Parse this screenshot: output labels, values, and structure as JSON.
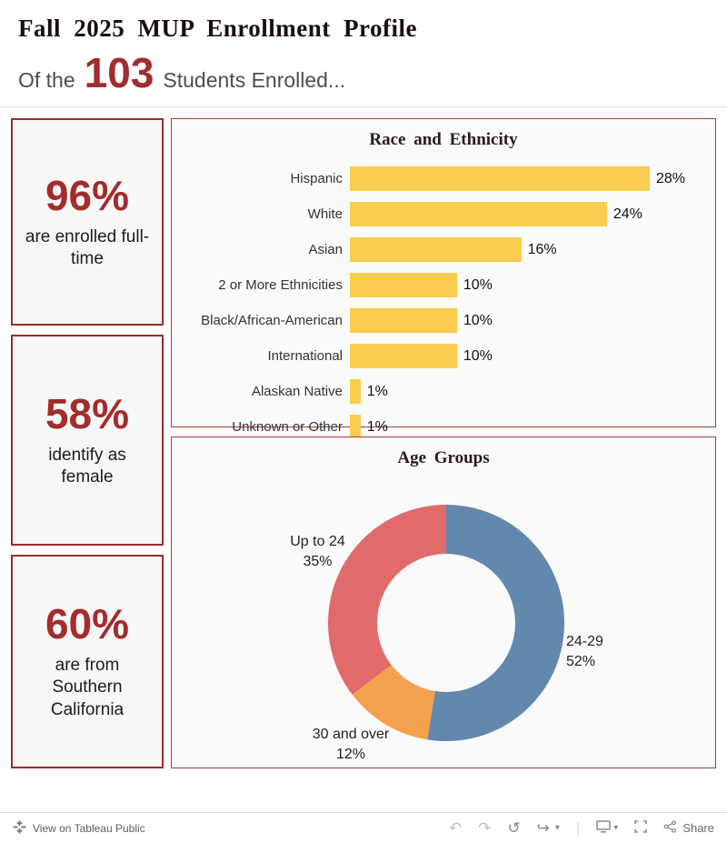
{
  "header": {
    "title": "Fall 2025 MUP Enrollment Profile",
    "subtitle_prefix": "Of the",
    "subtitle_number": "103",
    "subtitle_suffix": "Students Enrolled..."
  },
  "stats": [
    {
      "value": "96%",
      "label": "are enrolled full-time"
    },
    {
      "value": "58%",
      "label": "identify as female"
    },
    {
      "value": "60%",
      "label": "are from Southern California"
    }
  ],
  "colors": {
    "accent": "#A32C2C",
    "box_border": "#9E2B2B",
    "bar": "#FACC4F"
  },
  "chart_data": [
    {
      "type": "bar",
      "orientation": "horizontal",
      "title": "Race and Ethnicity",
      "categories": [
        "Hispanic",
        "White",
        "Asian",
        "2 or More Ethnicities",
        "Black/African-American",
        "International",
        "Alaskan Native",
        "Unknown or Other"
      ],
      "values": [
        28,
        24,
        16,
        10,
        10,
        10,
        1,
        1
      ],
      "value_labels": [
        "28%",
        "24%",
        "16%",
        "10%",
        "10%",
        "10%",
        "1%",
        "1%"
      ],
      "bar_color": "#FACC4F",
      "xlim": [
        0,
        30
      ],
      "grid": false,
      "legend": false
    },
    {
      "type": "pie",
      "donut": true,
      "title": "Age Groups",
      "slices": [
        {
          "label": "24-29",
          "value": 52,
          "value_label": "52%",
          "color": "#6288AE"
        },
        {
          "label": "30 and over",
          "value": 12,
          "value_label": "12%",
          "color": "#F2A14E"
        },
        {
          "label": "Up to 24",
          "value": 35,
          "value_label": "35%",
          "color": "#E16A6A"
        }
      ],
      "start_angle_deg": 0,
      "direction": "clockwise"
    }
  ],
  "toolbar": {
    "link": "View on Tableau Public",
    "icons": {
      "undo": "↶",
      "redo": "↷",
      "reset": "↺",
      "forward": "↪",
      "caret": "▾",
      "divider": "|"
    },
    "share_label": "Share"
  }
}
